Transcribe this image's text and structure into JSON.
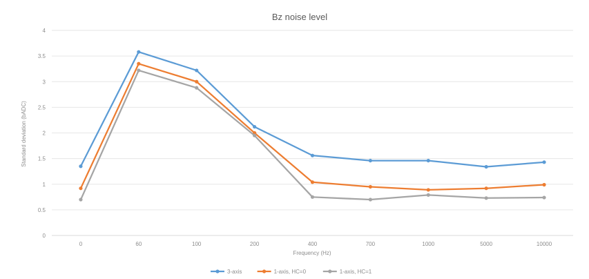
{
  "chart_data": {
    "type": "line",
    "title": "Bz noise level",
    "xlabel": "Frequency (Hz)",
    "ylabel": "Standard deviation (bADC)",
    "categories": [
      "0",
      "60",
      "100",
      "200",
      "400",
      "700",
      "1000",
      "5000",
      "10000"
    ],
    "ylim": [
      0,
      4
    ],
    "yticks": [
      "0",
      "0.5",
      "1",
      "1.5",
      "2",
      "2.5",
      "3",
      "3.5",
      "4"
    ],
    "grid": true,
    "legend_position": "bottom",
    "series": [
      {
        "name": "3-axis",
        "color": "#5b9bd5",
        "values": [
          1.35,
          3.58,
          3.22,
          2.12,
          1.56,
          1.46,
          1.46,
          1.34,
          1.43
        ]
      },
      {
        "name": "1-axis, HC=0",
        "color": "#ed7d31",
        "values": [
          0.92,
          3.35,
          3.0,
          2.0,
          1.04,
          0.95,
          0.89,
          0.92,
          0.99
        ]
      },
      {
        "name": "1-axis, HC=1",
        "color": "#a5a5a5",
        "values": [
          0.7,
          3.22,
          2.88,
          1.95,
          0.75,
          0.7,
          0.79,
          0.73,
          0.74
        ]
      }
    ]
  }
}
